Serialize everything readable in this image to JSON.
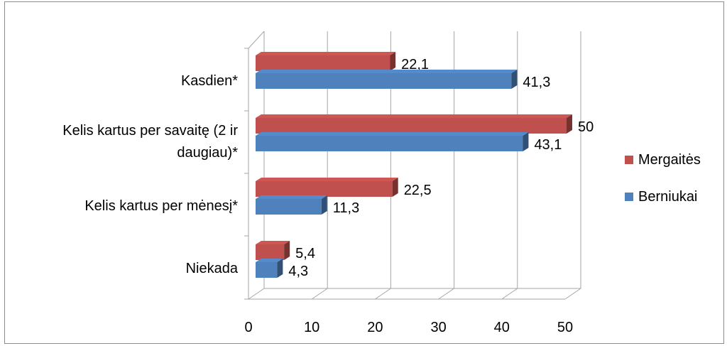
{
  "chart_data": {
    "type": "bar",
    "orientation": "horizontal",
    "style": "3d-clustered",
    "categories": [
      "Kasdien*",
      "Kelis kartus per savaitę (2 ir daugiau)*",
      "Kelis kartus per mėnesį*",
      "Niekada"
    ],
    "category_lines": [
      [
        "Kasdien*"
      ],
      [
        "Kelis kartus per savaitę (2 ir",
        "daugiau)*"
      ],
      [
        "Kelis kartus per mėnesį*"
      ],
      [
        "Niekada"
      ]
    ],
    "series": [
      {
        "name": "Mergaitės",
        "color": "#C0504D",
        "values": [
          22.1,
          50,
          22.5,
          5.4
        ],
        "labels": [
          "22,1",
          "50",
          "22,5",
          "5,4"
        ]
      },
      {
        "name": "Berniukai",
        "color": "#4F81BD",
        "values": [
          41.3,
          43.1,
          11.3,
          4.3
        ],
        "labels": [
          "41,3",
          "43,1",
          "11,3",
          "4,3"
        ]
      }
    ],
    "xlim": [
      0,
      50
    ],
    "x_ticks": [
      "0",
      "10",
      "20",
      "30",
      "40",
      "50"
    ],
    "grid": true,
    "legend_position": "right",
    "title": "",
    "xlabel": "",
    "ylabel": ""
  }
}
